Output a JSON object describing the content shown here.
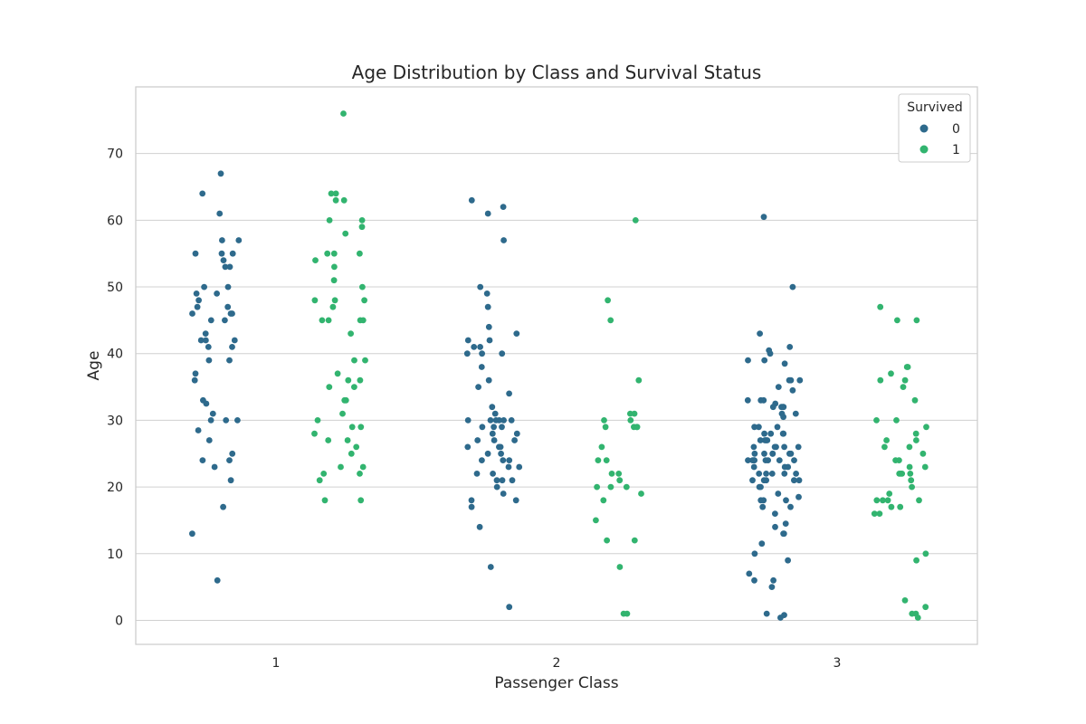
{
  "colors": {
    "survived_0": "#2e6a8c",
    "survived_1": "#32b46f",
    "grid": "#d0d0d0",
    "frame": "#cccccc"
  },
  "chart_data": {
    "type": "scatter",
    "subtype": "strip",
    "title": "Age Distribution by Class and Survival Status",
    "xlabel": "Passenger Class",
    "ylabel": "Age",
    "categories": [
      "1",
      "2",
      "3"
    ],
    "ylim": [
      -3.6,
      80
    ],
    "yticks": [
      0,
      10,
      20,
      30,
      40,
      50,
      60,
      70
    ],
    "grid": "horizontal",
    "legend": {
      "title": "Survived",
      "placement": "top-right",
      "entries": [
        "0",
        "1"
      ]
    },
    "series": [
      {
        "name": "0",
        "points": [
          {
            "class": "1",
            "age": [
              67,
              64,
              61,
              57,
              57,
              55,
              55,
              55,
              54,
              53,
              53,
              50,
              50,
              49,
              49,
              48,
              47,
              47,
              46,
              46,
              46,
              45,
              45,
              43,
              42,
              42,
              42,
              41,
              41,
              39,
              39,
              37,
              36,
              33,
              32.5,
              31,
              30,
              30,
              30,
              28.5,
              27,
              25,
              24,
              24,
              23,
              21,
              17,
              13,
              6
            ]
          },
          {
            "class": "1",
            "age": []
          }
        ]
      }
    ],
    "strip_points": {
      "0": {
        "1": [
          67,
          64,
          61,
          57,
          57,
          55,
          55,
          55,
          54,
          53,
          53,
          50,
          50,
          49,
          49,
          48,
          47,
          47,
          46,
          46,
          46,
          45,
          45,
          43,
          42,
          42,
          42,
          41,
          41,
          39,
          39,
          37,
          36,
          33,
          32.5,
          31,
          30,
          30,
          30,
          28.5,
          27,
          25,
          24,
          24,
          23,
          21,
          17,
          13,
          6
        ],
        "2": [
          63,
          62,
          61,
          57,
          50,
          49,
          47,
          44,
          43,
          42,
          42,
          41,
          41,
          40,
          40,
          40,
          38,
          36,
          35,
          34,
          32,
          31,
          30,
          30,
          30,
          30,
          30,
          30,
          29,
          29,
          29,
          28,
          28,
          27,
          27,
          27,
          26,
          26,
          26,
          25,
          25,
          24,
          24,
          24,
          23,
          23,
          22,
          22,
          21,
          21,
          21,
          20,
          19,
          18,
          18,
          17,
          14,
          8,
          2
        ],
        "3": [
          60.5,
          50,
          43,
          41,
          40.5,
          40,
          39,
          39,
          38.5,
          36,
          36,
          36,
          35,
          34.5,
          33,
          33,
          33,
          32.5,
          32,
          32,
          32,
          32,
          31,
          31,
          30.5,
          29,
          29,
          29,
          28,
          28,
          28,
          28,
          27,
          27,
          27,
          27,
          26,
          26,
          26,
          26,
          26,
          25,
          25,
          25,
          25,
          25,
          25,
          24,
          24,
          24,
          24,
          24,
          24,
          24,
          24,
          23,
          23,
          23,
          22,
          22,
          22,
          22,
          22,
          21,
          21,
          21,
          21,
          21,
          20,
          20,
          19,
          18.5,
          18,
          18,
          18,
          17,
          17,
          16,
          14.5,
          14,
          13,
          13,
          11.5,
          10,
          9,
          7,
          6,
          6,
          5,
          1,
          0.8,
          0.4
        ]
      },
      "1": {
        "1": [
          76,
          64,
          64,
          63,
          63,
          60,
          60,
          59,
          58,
          55,
          55,
          55,
          54,
          53,
          51,
          50,
          48,
          48,
          48,
          47,
          45,
          45,
          45,
          45,
          43,
          39,
          39,
          37,
          36,
          36,
          35,
          35,
          33,
          33,
          31,
          30,
          29,
          29,
          28,
          27,
          27,
          26,
          25,
          23,
          23,
          22,
          22,
          21,
          18,
          18
        ],
        "2": [
          60,
          48,
          45,
          36,
          31,
          31,
          30,
          30,
          29,
          29,
          29,
          29,
          26,
          24,
          24,
          22,
          22,
          21,
          20,
          20,
          20,
          19,
          18,
          15,
          12,
          12,
          8,
          1,
          1
        ],
        "3": [
          47,
          45,
          45,
          38,
          38,
          37,
          36,
          36,
          35,
          33,
          30,
          30,
          29,
          28,
          27,
          27,
          26,
          26,
          25,
          24,
          24,
          23,
          23,
          22,
          22,
          22,
          22,
          21,
          20,
          19,
          18,
          18,
          18,
          18,
          17,
          17,
          16,
          16,
          10,
          9,
          3,
          2,
          1,
          1,
          0.4
        ]
      }
    }
  }
}
